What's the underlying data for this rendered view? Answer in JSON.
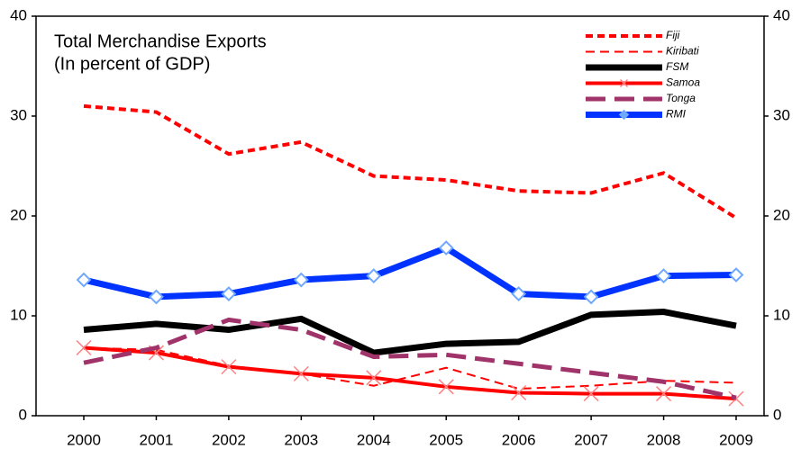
{
  "chart_data": {
    "type": "line",
    "title": "Total Merchandise Exports",
    "subtitle": "(In percent of GDP)",
    "categories": [
      "2000",
      "2001",
      "2002",
      "2003",
      "2004",
      "2005",
      "2006",
      "2007",
      "2008",
      "2009"
    ],
    "series": [
      {
        "name": "Fiji",
        "color": "#ff0000",
        "values": [
          31.0,
          30.4,
          26.2,
          27.4,
          24.0,
          23.6,
          22.5,
          22.3,
          24.3,
          19.8
        ]
      },
      {
        "name": "Kiribati",
        "color": "#ff0000",
        "values": [
          6.8,
          6.6,
          5.0,
          4.2,
          3.0,
          4.8,
          2.7,
          3.0,
          3.5,
          3.3
        ]
      },
      {
        "name": "FSM",
        "color": "#000000",
        "values": [
          8.6,
          9.2,
          8.6,
          9.7,
          6.3,
          7.2,
          7.4,
          10.1,
          10.4,
          9.0
        ]
      },
      {
        "name": "Samoa",
        "color": "#ff0000",
        "values": [
          6.8,
          6.3,
          4.9,
          4.2,
          3.8,
          2.9,
          2.3,
          2.2,
          2.2,
          1.7
        ]
      },
      {
        "name": "Tonga",
        "color": "#a0336a",
        "values": [
          5.3,
          6.8,
          9.6,
          8.6,
          5.9,
          6.1,
          5.2,
          4.3,
          3.4,
          1.8
        ]
      },
      {
        "name": "RMI",
        "color": "#0033ff",
        "values": [
          13.6,
          11.9,
          12.2,
          13.6,
          14.0,
          16.8,
          12.2,
          11.9,
          14.0,
          14.1
        ]
      }
    ],
    "ylim": [
      0,
      40
    ],
    "yticks": [
      0,
      10,
      20,
      30,
      40
    ],
    "y2lim": [
      0,
      40
    ],
    "y2ticks": [
      0,
      10,
      20,
      30,
      40
    ]
  }
}
